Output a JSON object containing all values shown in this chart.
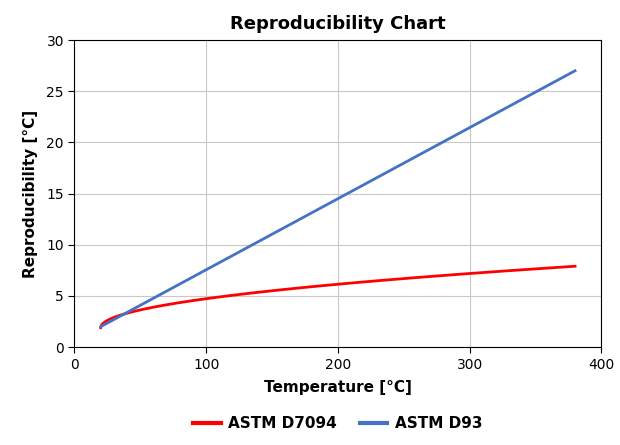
{
  "title": "Reproducibility Chart",
  "xlabel": "Temperature [°C]",
  "ylabel": "Reproducibility [°C]",
  "xlim": [
    0,
    400
  ],
  "ylim": [
    0,
    30
  ],
  "xticks": [
    0,
    100,
    200,
    300,
    400
  ],
  "yticks": [
    0,
    5,
    10,
    15,
    20,
    25,
    30
  ],
  "line_d7094": {
    "label": "ASTM D7094",
    "color": "#ff0000",
    "x_start": 20,
    "x_end": 380,
    "y_start": 1.9,
    "y_end": 7.9
  },
  "line_d93": {
    "label": "ASTM D93",
    "color": "#4472c4",
    "x_start": 20,
    "x_end": 380,
    "y_start": 2.0,
    "y_end": 27.0
  },
  "title_fontsize": 13,
  "label_fontsize": 11,
  "tick_fontsize": 10,
  "legend_fontsize": 11,
  "line_width": 2.0,
  "background_color": "#ffffff",
  "grid_color": "#c8c8c8"
}
